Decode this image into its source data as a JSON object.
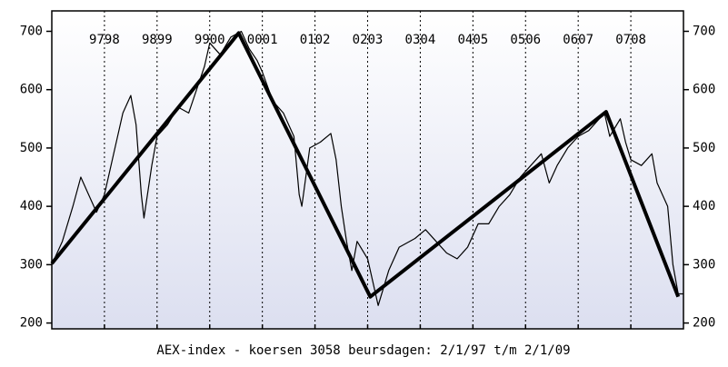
{
  "chart_data": {
    "type": "line",
    "title": "AEX-index - koersen 3058 beursdagen: 2/1/97 t/m 2/1/09",
    "xlim": [
      1997,
      2009
    ],
    "xticks": [
      {
        "value": 1998,
        "label": "9798"
      },
      {
        "value": 1999,
        "label": "9899"
      },
      {
        "value": 2000,
        "label": "9900"
      },
      {
        "value": 2001,
        "label": "0001"
      },
      {
        "value": 2002,
        "label": "0102"
      },
      {
        "value": 2003,
        "label": "0203"
      },
      {
        "value": 2004,
        "label": "0304"
      },
      {
        "value": 2005,
        "label": "0405"
      },
      {
        "value": 2006,
        "label": "0506"
      },
      {
        "value": 2007,
        "label": "0607"
      },
      {
        "value": 2008,
        "label": "0708"
      }
    ],
    "ylim": [
      190,
      735
    ],
    "yticks": [
      200,
      300,
      400,
      500,
      600,
      700
    ],
    "grid": true,
    "series": [
      {
        "color": "#000000",
        "line_width": 1.2,
        "x": [
          1997.0,
          1997.2,
          1997.4,
          1997.55,
          1997.7,
          1997.85,
          1998.0,
          1998.2,
          1998.35,
          1998.5,
          1998.6,
          1998.7,
          1998.75,
          1998.9,
          1999.0,
          1999.2,
          1999.4,
          1999.6,
          1999.75,
          1999.9,
          2000.0,
          2000.2,
          2000.4,
          2000.6,
          2000.75,
          2000.9,
          2001.0,
          2001.2,
          2001.4,
          2001.6,
          2001.7,
          2001.75,
          2001.9,
          2002.1,
          2002.3,
          2002.4,
          2002.5,
          2002.6,
          2002.7,
          2002.8,
          2003.0,
          2003.2,
          2003.4,
          2003.6,
          2003.9,
          2004.1,
          2004.3,
          2004.5,
          2004.7,
          2004.9,
          2005.1,
          2005.3,
          2005.5,
          2005.7,
          2005.9,
          2006.1,
          2006.3,
          2006.45,
          2006.6,
          2006.8,
          2007.0,
          2007.2,
          2007.4,
          2007.5,
          2007.6,
          2007.8,
          2007.9,
          2008.0,
          2008.2,
          2008.4,
          2008.5,
          2008.6,
          2008.7,
          2008.8,
          2008.9,
          2009.0
        ],
        "values": [
          300,
          340,
          400,
          450,
          420,
          390,
          420,
          500,
          560,
          590,
          540,
          420,
          380,
          470,
          520,
          540,
          570,
          560,
          600,
          640,
          680,
          660,
          690,
          700,
          670,
          650,
          630,
          580,
          560,
          520,
          420,
          400,
          500,
          510,
          525,
          480,
          400,
          340,
          290,
          340,
          310,
          230,
          290,
          330,
          345,
          360,
          340,
          320,
          310,
          330,
          370,
          370,
          400,
          420,
          450,
          470,
          490,
          440,
          470,
          500,
          520,
          530,
          550,
          560,
          520,
          550,
          510,
          480,
          470,
          490,
          440,
          420,
          400,
          300,
          250,
          250
        ]
      },
      {
        "color": "#000000",
        "line_width": 4,
        "x": [
          1997.0,
          2000.55,
          2003.05,
          2007.53,
          2008.9
        ],
        "values": [
          302,
          697,
          245,
          562,
          245
        ]
      }
    ]
  }
}
